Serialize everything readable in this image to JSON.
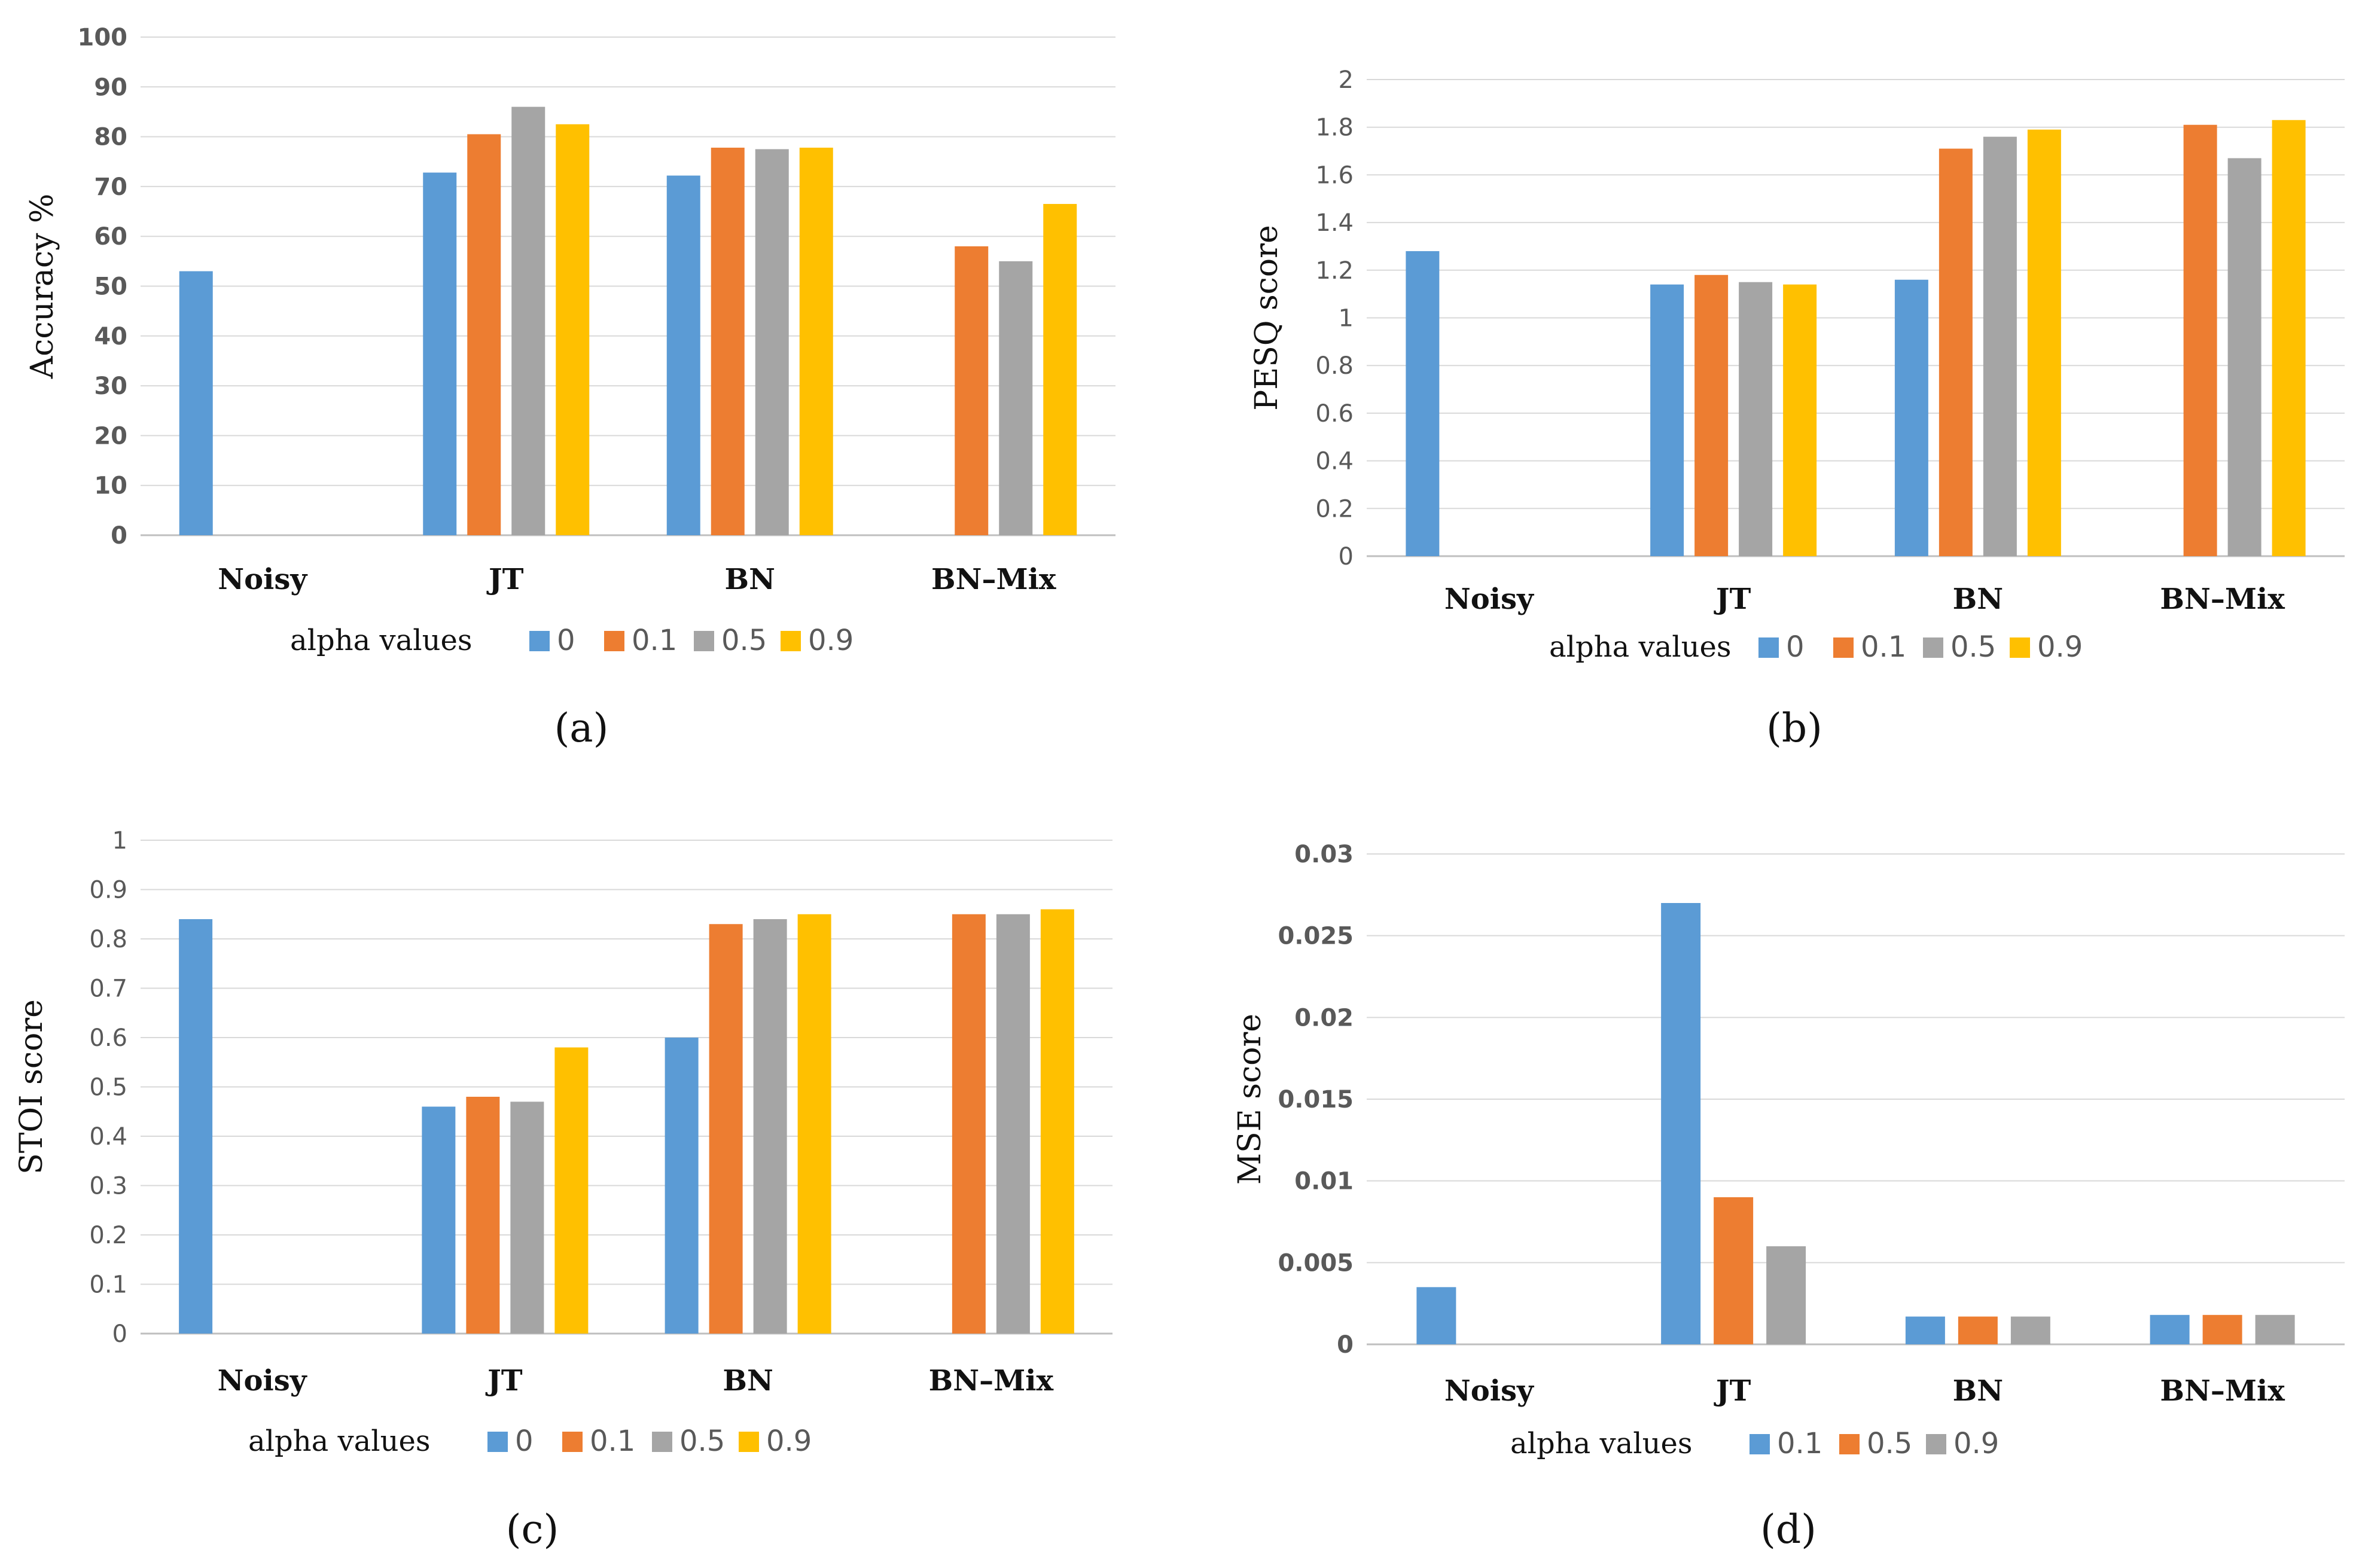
{
  "colors": {
    "0": "#5B9BD5",
    "0.1": "#ED7D31",
    "0.5": "#A5A5A5",
    "0.9": "#FFC000",
    "grid": "#D9D9D9",
    "axis": "#BFBFBF"
  },
  "chart_data": [
    {
      "panel": "(a)",
      "type": "bar",
      "ylabel": "Accuracy %",
      "ylim": [
        0,
        100
      ],
      "yticks": [
        "0",
        "10",
        "20",
        "30",
        "40",
        "50",
        "60",
        "70",
        "80",
        "90",
        "100"
      ],
      "categories": [
        "Noisy",
        "JT",
        "BN",
        "BN–Mix"
      ],
      "legend_title": "alpha values",
      "series": [
        {
          "name": "0",
          "color_key": "0",
          "values": [
            53,
            72.8,
            72.2,
            null
          ]
        },
        {
          "name": "0.1",
          "color_key": "0.1",
          "values": [
            null,
            80.5,
            77.8,
            58
          ]
        },
        {
          "name": "0.5",
          "color_key": "0.5",
          "values": [
            null,
            86,
            77.5,
            55
          ]
        },
        {
          "name": "0.9",
          "color_key": "0.9",
          "values": [
            null,
            82.5,
            77.8,
            66.5
          ]
        }
      ]
    },
    {
      "panel": "(b)",
      "type": "bar",
      "ylabel": "PESQ score",
      "ylim": [
        0,
        2
      ],
      "yticks": [
        "0",
        "0.2",
        "0.4",
        "0.6",
        "0.8",
        "1",
        "1.2",
        "1.4",
        "1.6",
        "1.8",
        "2"
      ],
      "categories": [
        "Noisy",
        "JT",
        "BN",
        "BN–Mix"
      ],
      "legend_title": "alpha values",
      "series": [
        {
          "name": "0",
          "color_key": "0",
          "values": [
            1.28,
            1.14,
            1.16,
            null
          ]
        },
        {
          "name": "0.1",
          "color_key": "0.1",
          "values": [
            null,
            1.18,
            1.71,
            1.81
          ]
        },
        {
          "name": "0.5",
          "color_key": "0.5",
          "values": [
            null,
            1.15,
            1.76,
            1.67
          ]
        },
        {
          "name": "0.9",
          "color_key": "0.9",
          "values": [
            null,
            1.14,
            1.79,
            1.83
          ]
        }
      ]
    },
    {
      "panel": "(c)",
      "type": "bar",
      "ylabel": "STOI score",
      "ylim": [
        0,
        1
      ],
      "yticks": [
        "0",
        "0.1",
        "0.2",
        "0.3",
        "0.4",
        "0.5",
        "0.6",
        "0.7",
        "0.8",
        "0.9",
        "1"
      ],
      "categories": [
        "Noisy",
        "JT",
        "BN",
        "BN–Mix"
      ],
      "legend_title": "alpha values",
      "series": [
        {
          "name": "0",
          "color_key": "0",
          "values": [
            0.84,
            0.46,
            0.6,
            null
          ]
        },
        {
          "name": "0.1",
          "color_key": "0.1",
          "values": [
            null,
            0.48,
            0.83,
            0.85
          ]
        },
        {
          "name": "0.5",
          "color_key": "0.5",
          "values": [
            null,
            0.47,
            0.84,
            0.85
          ]
        },
        {
          "name": "0.9",
          "color_key": "0.9",
          "values": [
            null,
            0.58,
            0.85,
            0.86
          ]
        }
      ]
    },
    {
      "panel": "(d)",
      "type": "bar",
      "ylabel": "MSE score",
      "ylim": [
        0,
        0.03
      ],
      "yticks": [
        "0",
        "0.005",
        "0.01",
        "0.015",
        "0.02",
        "0.025",
        "0.03"
      ],
      "categories": [
        "Noisy",
        "JT",
        "BN",
        "BN–Mix"
      ],
      "legend_title": "alpha values",
      "series": [
        {
          "name": "0.1",
          "color_key": "0",
          "values": [
            0.0035,
            0.027,
            0.0017,
            0.0018
          ]
        },
        {
          "name": "0.5",
          "color_key": "0.1",
          "values": [
            null,
            0.009,
            0.0017,
            0.0018
          ]
        },
        {
          "name": "0.9",
          "color_key": "0.5",
          "values": [
            null,
            0.006,
            0.0017,
            0.0018
          ]
        }
      ]
    }
  ]
}
